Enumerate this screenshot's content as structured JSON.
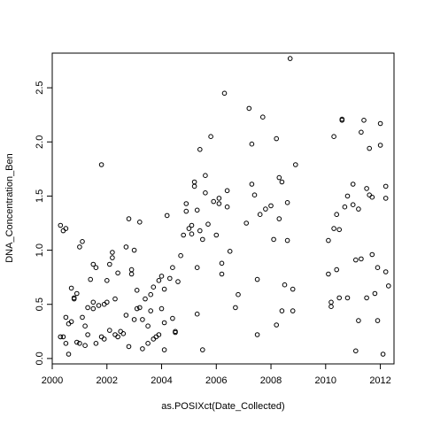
{
  "chart_data": {
    "type": "scatter",
    "title": "",
    "xlabel": "as.POSIXct(Date_Collected)",
    "ylabel": "DNA_Concentration_Ben",
    "xlim": [
      2000.0,
      2012.5
    ],
    "ylim": [
      -0.05,
      2.82
    ],
    "xticks": [
      2000,
      2002,
      2004,
      2006,
      2008,
      2010,
      2012
    ],
    "xtick_labels": [
      "2000",
      "2002",
      "2004",
      "2006",
      "2008",
      "2010",
      "2012"
    ],
    "yticks": [
      0.0,
      0.5,
      1.0,
      1.5,
      2.0,
      2.5
    ],
    "ytick_labels": [
      "0.0",
      "0.5",
      "1.0",
      "1.5",
      "2.0",
      "2.5"
    ],
    "grid": false,
    "legend": "none",
    "point_color": "#000000",
    "points": [
      [
        2000.3,
        1.23
      ],
      [
        2000.4,
        1.18
      ],
      [
        2000.5,
        1.2
      ],
      [
        2000.3,
        0.2
      ],
      [
        2000.4,
        0.2
      ],
      [
        2000.5,
        0.38
      ],
      [
        2000.5,
        0.14
      ],
      [
        2000.6,
        0.32
      ],
      [
        2000.6,
        0.04
      ],
      [
        2000.7,
        0.34
      ],
      [
        2000.7,
        0.65
      ],
      [
        2000.8,
        0.55
      ],
      [
        2000.8,
        0.56
      ],
      [
        2000.9,
        0.6
      ],
      [
        2000.9,
        0.15
      ],
      [
        2001.0,
        0.14
      ],
      [
        2001.0,
        1.03
      ],
      [
        2001.1,
        1.08
      ],
      [
        2001.1,
        0.38
      ],
      [
        2001.2,
        0.3
      ],
      [
        2001.2,
        0.12
      ],
      [
        2001.3,
        0.47
      ],
      [
        2001.3,
        0.22
      ],
      [
        2001.4,
        0.73
      ],
      [
        2001.5,
        0.52
      ],
      [
        2001.5,
        0.46
      ],
      [
        2001.5,
        0.87
      ],
      [
        2001.6,
        0.84
      ],
      [
        2001.6,
        0.14
      ],
      [
        2001.7,
        0.49
      ],
      [
        2001.8,
        1.79
      ],
      [
        2001.8,
        0.2
      ],
      [
        2001.9,
        0.18
      ],
      [
        2001.9,
        0.5
      ],
      [
        2002.0,
        0.52
      ],
      [
        2002.0,
        0.72
      ],
      [
        2002.1,
        0.26
      ],
      [
        2002.1,
        0.87
      ],
      [
        2002.2,
        0.93
      ],
      [
        2002.2,
        0.98
      ],
      [
        2002.3,
        0.55
      ],
      [
        2002.3,
        0.22
      ],
      [
        2002.4,
        0.2
      ],
      [
        2002.4,
        0.79
      ],
      [
        2002.5,
        0.25
      ],
      [
        2002.6,
        0.23
      ],
      [
        2002.7,
        1.03
      ],
      [
        2002.7,
        0.4
      ],
      [
        2002.8,
        1.29
      ],
      [
        2002.8,
        0.11
      ],
      [
        2002.9,
        0.78
      ],
      [
        2002.9,
        0.82
      ],
      [
        2003.0,
        1.0
      ],
      [
        2003.0,
        0.36
      ],
      [
        2003.1,
        0.46
      ],
      [
        2003.1,
        0.63
      ],
      [
        2003.2,
        0.47
      ],
      [
        2003.2,
        1.26
      ],
      [
        2003.3,
        0.09
      ],
      [
        2003.3,
        0.36
      ],
      [
        2003.4,
        0.55
      ],
      [
        2003.5,
        0.3
      ],
      [
        2003.5,
        0.14
      ],
      [
        2003.6,
        0.44
      ],
      [
        2003.6,
        0.59
      ],
      [
        2003.7,
        0.18
      ],
      [
        2003.7,
        0.66
      ],
      [
        2003.8,
        0.2
      ],
      [
        2003.9,
        0.22
      ],
      [
        2003.9,
        0.72
      ],
      [
        2004.0,
        0.76
      ],
      [
        2004.0,
        0.46
      ],
      [
        2004.1,
        0.33
      ],
      [
        2004.1,
        0.08
      ],
      [
        2004.1,
        0.64
      ],
      [
        2004.2,
        1.32
      ],
      [
        2004.3,
        0.74
      ],
      [
        2004.4,
        0.37
      ],
      [
        2004.4,
        0.84
      ],
      [
        2004.5,
        0.24
      ],
      [
        2004.5,
        0.25
      ],
      [
        2004.6,
        0.71
      ],
      [
        2004.7,
        0.95
      ],
      [
        2004.8,
        1.14
      ],
      [
        2004.9,
        1.43
      ],
      [
        2004.9,
        1.36
      ],
      [
        2005.0,
        1.2
      ],
      [
        2005.1,
        1.23
      ],
      [
        2005.1,
        1.15
      ],
      [
        2005.2,
        1.59
      ],
      [
        2005.2,
        1.63
      ],
      [
        2005.3,
        1.37
      ],
      [
        2005.3,
        0.41
      ],
      [
        2005.3,
        0.84
      ],
      [
        2005.4,
        1.93
      ],
      [
        2005.4,
        1.18
      ],
      [
        2005.5,
        0.08
      ],
      [
        2005.5,
        1.1
      ],
      [
        2005.6,
        1.53
      ],
      [
        2005.6,
        1.69
      ],
      [
        2005.7,
        1.24
      ],
      [
        2005.8,
        2.05
      ],
      [
        2005.9,
        1.45
      ],
      [
        2006.0,
        1.14
      ],
      [
        2006.1,
        1.48
      ],
      [
        2006.1,
        1.43
      ],
      [
        2006.2,
        0.88
      ],
      [
        2006.2,
        0.78
      ],
      [
        2006.3,
        2.45
      ],
      [
        2006.4,
        1.55
      ],
      [
        2006.4,
        1.4
      ],
      [
        2006.5,
        0.99
      ],
      [
        2006.7,
        0.47
      ],
      [
        2006.8,
        0.59
      ],
      [
        2007.1,
        1.25
      ],
      [
        2007.2,
        2.31
      ],
      [
        2007.3,
        1.98
      ],
      [
        2007.3,
        1.61
      ],
      [
        2007.4,
        1.51
      ],
      [
        2007.5,
        0.73
      ],
      [
        2007.5,
        0.22
      ],
      [
        2007.6,
        1.33
      ],
      [
        2007.7,
        2.23
      ],
      [
        2007.8,
        1.38
      ],
      [
        2008.0,
        1.41
      ],
      [
        2008.1,
        1.1
      ],
      [
        2008.2,
        2.03
      ],
      [
        2008.2,
        0.31
      ],
      [
        2008.3,
        1.67
      ],
      [
        2008.3,
        1.29
      ],
      [
        2008.4,
        1.63
      ],
      [
        2008.4,
        0.44
      ],
      [
        2008.5,
        0.68
      ],
      [
        2008.6,
        1.09
      ],
      [
        2008.6,
        1.44
      ],
      [
        2008.7,
        2.77
      ],
      [
        2008.8,
        0.44
      ],
      [
        2008.8,
        0.64
      ],
      [
        2008.9,
        1.79
      ],
      [
        2010.1,
        1.09
      ],
      [
        2010.1,
        0.78
      ],
      [
        2010.2,
        0.48
      ],
      [
        2010.2,
        0.52
      ],
      [
        2010.3,
        2.05
      ],
      [
        2010.3,
        1.2
      ],
      [
        2010.4,
        1.33
      ],
      [
        2010.4,
        0.82
      ],
      [
        2010.5,
        0.56
      ],
      [
        2010.5,
        1.19
      ],
      [
        2010.6,
        2.2
      ],
      [
        2010.6,
        2.21
      ],
      [
        2010.7,
        1.4
      ],
      [
        2010.8,
        0.56
      ],
      [
        2010.8,
        1.5
      ],
      [
        2011.0,
        1.61
      ],
      [
        2011.0,
        1.42
      ],
      [
        2011.1,
        0.07
      ],
      [
        2011.1,
        0.91
      ],
      [
        2011.2,
        1.38
      ],
      [
        2011.2,
        0.35
      ],
      [
        2011.3,
        2.09
      ],
      [
        2011.3,
        0.92
      ],
      [
        2011.4,
        2.2
      ],
      [
        2011.5,
        1.57
      ],
      [
        2011.5,
        0.56
      ],
      [
        2011.6,
        1.51
      ],
      [
        2011.6,
        1.94
      ],
      [
        2011.7,
        0.96
      ],
      [
        2011.7,
        1.49
      ],
      [
        2011.8,
        0.6
      ],
      [
        2011.9,
        0.84
      ],
      [
        2011.9,
        0.35
      ],
      [
        2012.0,
        2.17
      ],
      [
        2012.0,
        1.97
      ],
      [
        2012.1,
        0.04
      ],
      [
        2012.2,
        1.59
      ],
      [
        2012.2,
        1.48
      ],
      [
        2012.2,
        0.8
      ],
      [
        2012.3,
        0.67
      ]
    ]
  }
}
